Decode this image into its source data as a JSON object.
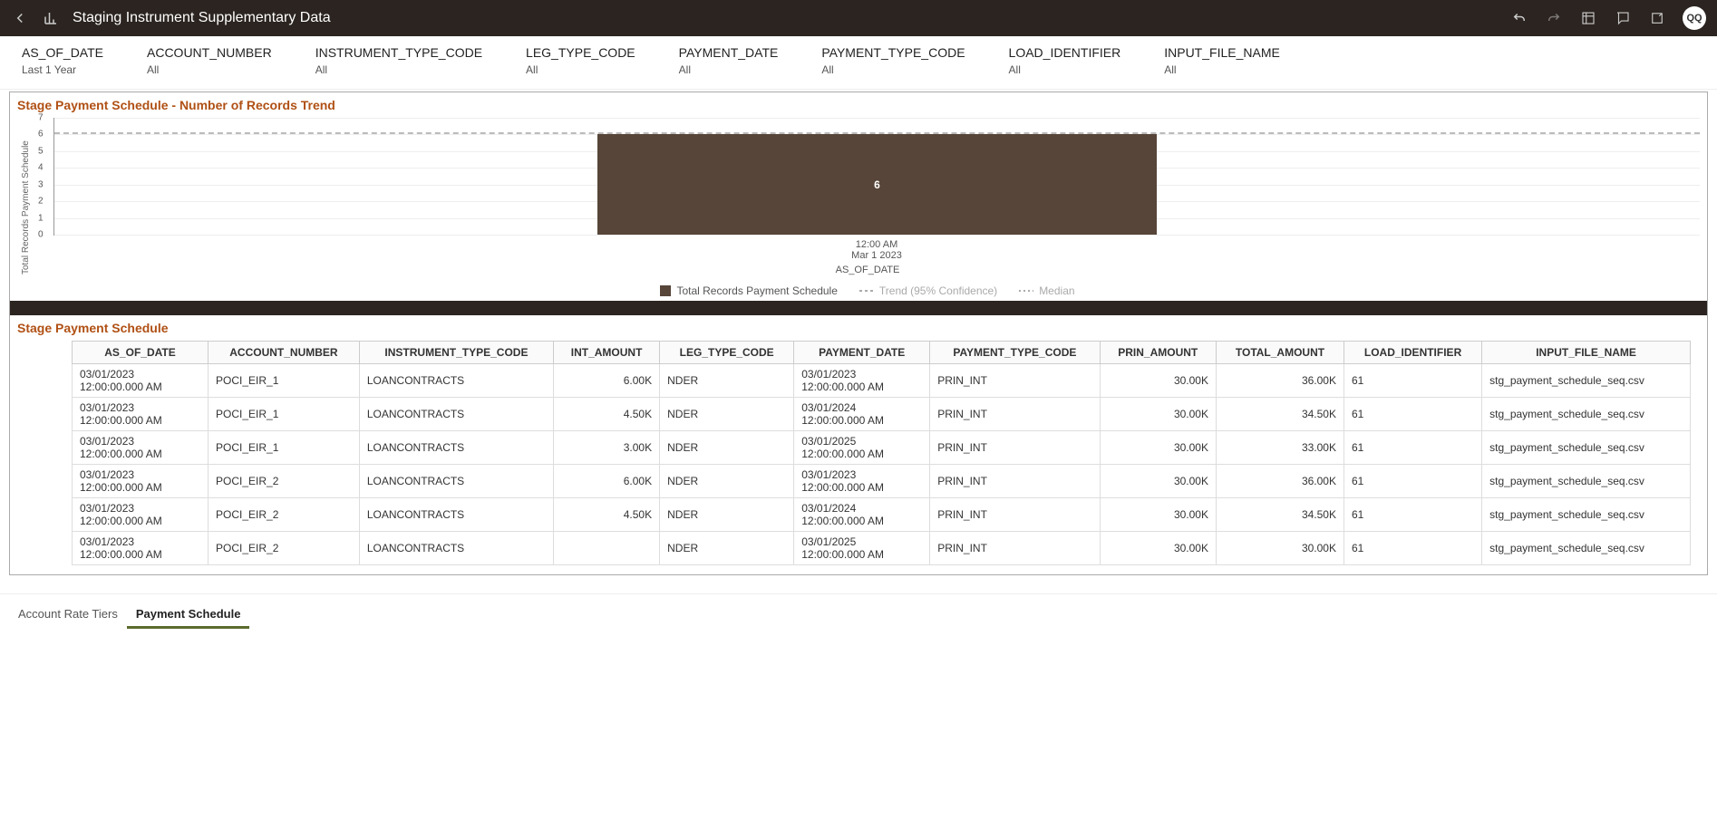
{
  "header": {
    "title": "Staging Instrument Supplementary Data",
    "avatar": "QQ"
  },
  "filters": [
    {
      "label": "AS_OF_DATE",
      "value": "Last 1 Year"
    },
    {
      "label": "ACCOUNT_NUMBER",
      "value": "All"
    },
    {
      "label": "INSTRUMENT_TYPE_CODE",
      "value": "All"
    },
    {
      "label": "LEG_TYPE_CODE",
      "value": "All"
    },
    {
      "label": "PAYMENT_DATE",
      "value": "All"
    },
    {
      "label": "PAYMENT_TYPE_CODE",
      "value": "All"
    },
    {
      "label": "LOAD_IDENTIFIER",
      "value": "All"
    },
    {
      "label": "INPUT_FILE_NAME",
      "value": "All"
    }
  ],
  "chart": {
    "title": "Stage Payment Schedule - Number of Records Trend",
    "ylabel": "Total Records Payment Schedule",
    "ymax": 7,
    "yticks": [
      0,
      1,
      2,
      3,
      4,
      5,
      6,
      7
    ],
    "bar_value": 6,
    "bar_color": "#564538",
    "ref_value": 6,
    "xtick_line1": "12:00 AM",
    "xtick_line2": "Mar 1 2023",
    "xlabel": "AS_OF_DATE",
    "legend": {
      "main": "Total Records Payment Schedule",
      "trend": "Trend (95% Confidence)",
      "median": "Median"
    },
    "grid_color": "#eeeeee",
    "background": "#ffffff"
  },
  "table": {
    "title": "Stage Payment Schedule",
    "columns": [
      "AS_OF_DATE",
      "ACCOUNT_NUMBER",
      "INSTRUMENT_TYPE_CODE",
      "INT_AMOUNT",
      "LEG_TYPE_CODE",
      "PAYMENT_DATE",
      "PAYMENT_TYPE_CODE",
      "PRIN_AMOUNT",
      "TOTAL_AMOUNT",
      "LOAD_IDENTIFIER",
      "INPUT_FILE_NAME"
    ],
    "rows": [
      [
        "03/01/2023 12:00:00.000 AM",
        "POCI_EIR_1",
        "LOANCONTRACTS",
        "6.00K",
        "NDER",
        "03/01/2023 12:00:00.000 AM",
        "PRIN_INT",
        "30.00K",
        "36.00K",
        "61",
        "stg_payment_schedule_seq.csv"
      ],
      [
        "03/01/2023 12:00:00.000 AM",
        "POCI_EIR_1",
        "LOANCONTRACTS",
        "4.50K",
        "NDER",
        "03/01/2024 12:00:00.000 AM",
        "PRIN_INT",
        "30.00K",
        "34.50K",
        "61",
        "stg_payment_schedule_seq.csv"
      ],
      [
        "03/01/2023 12:00:00.000 AM",
        "POCI_EIR_1",
        "LOANCONTRACTS",
        "3.00K",
        "NDER",
        "03/01/2025 12:00:00.000 AM",
        "PRIN_INT",
        "30.00K",
        "33.00K",
        "61",
        "stg_payment_schedule_seq.csv"
      ],
      [
        "03/01/2023 12:00:00.000 AM",
        "POCI_EIR_2",
        "LOANCONTRACTS",
        "6.00K",
        "NDER",
        "03/01/2023 12:00:00.000 AM",
        "PRIN_INT",
        "30.00K",
        "36.00K",
        "61",
        "stg_payment_schedule_seq.csv"
      ],
      [
        "03/01/2023 12:00:00.000 AM",
        "POCI_EIR_2",
        "LOANCONTRACTS",
        "4.50K",
        "NDER",
        "03/01/2024 12:00:00.000 AM",
        "PRIN_INT",
        "30.00K",
        "34.50K",
        "61",
        "stg_payment_schedule_seq.csv"
      ],
      [
        "03/01/2023 12:00:00.000 AM",
        "POCI_EIR_2",
        "LOANCONTRACTS",
        "",
        "NDER",
        "03/01/2025 12:00:00.000 AM",
        "PRIN_INT",
        "30.00K",
        "30.00K",
        "61",
        "stg_payment_schedule_seq.csv"
      ]
    ],
    "numeric_cols": [
      3,
      7,
      8
    ]
  },
  "tabs": {
    "items": [
      "Account Rate Tiers",
      "Payment Schedule"
    ],
    "active": 1
  }
}
